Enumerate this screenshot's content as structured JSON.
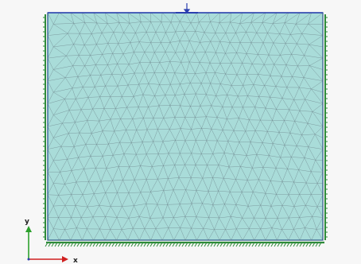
{
  "axes": {
    "x_label": "x",
    "y_label": "y"
  },
  "colors": {
    "background": "#f7f7f7",
    "mesh_fill": "#a9dcd9",
    "mesh_line": "#5f6f78",
    "soil_edge": "#1f4f8f",
    "support_green": "#2e8b3a",
    "load_blue": "#2a3fb0",
    "axis_x": "#d02020",
    "axis_y": "#2ca02c"
  },
  "legend_icons": {
    "load": "point-load-icon",
    "side_support": "roller-support-icon",
    "base_support": "fixed-support-icon"
  }
}
